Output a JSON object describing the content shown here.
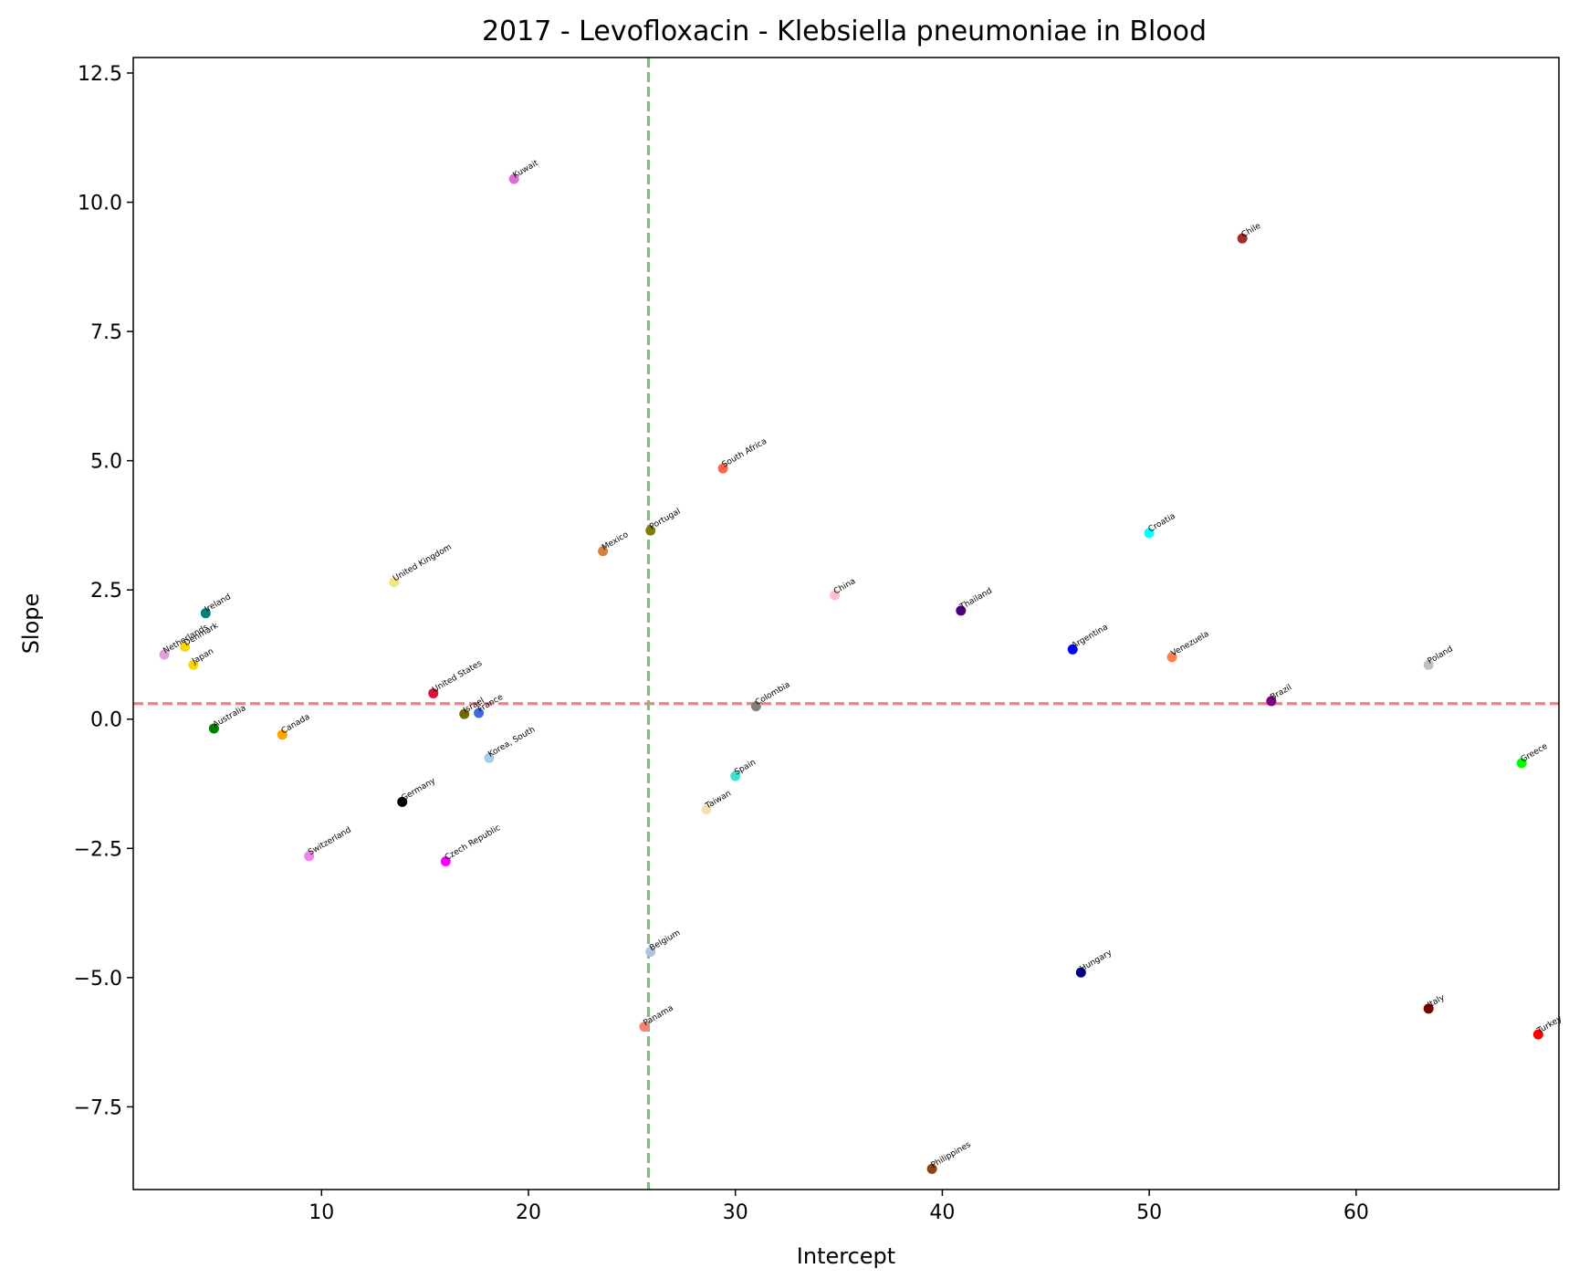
{
  "chart_data": {
    "type": "scatter",
    "title": "2017 - Levofloxacin - Klebsiella pneumoniae in Blood",
    "xlabel": "Intercept",
    "ylabel": "Slope",
    "xlim": [
      0.9,
      69.8
    ],
    "ylim": [
      -9.1,
      12.8
    ],
    "xticks": [
      10,
      20,
      30,
      40,
      50,
      60
    ],
    "yticks": [
      12.5,
      10.0,
      7.5,
      5.0,
      2.5,
      0.0,
      -2.5,
      -5.0,
      -7.5
    ],
    "xtick_labels": [
      "10",
      "20",
      "30",
      "40",
      "50",
      "60"
    ],
    "ytick_labels": [
      "12.5",
      "10.0",
      "7.5",
      "5.0",
      "2.5",
      "0.0",
      "−2.5",
      "−5.0",
      "−7.5"
    ],
    "grid": false,
    "legend": "none",
    "reference_lines": [
      {
        "orientation": "horizontal",
        "value": 0.3,
        "color": "#f08080",
        "style": "dashed"
      },
      {
        "orientation": "vertical",
        "value": 25.8,
        "color": "#7cbf7c",
        "style": "dashed"
      }
    ],
    "points": [
      {
        "label": "Kuwait",
        "x": 19.3,
        "y": 10.45,
        "color": "#da70d6"
      },
      {
        "label": "Chile",
        "x": 54.5,
        "y": 9.3,
        "color": "#a52a2a"
      },
      {
        "label": "South Africa",
        "x": 29.4,
        "y": 4.85,
        "color": "#ff6347"
      },
      {
        "label": "Croatia",
        "x": 50.0,
        "y": 3.6,
        "color": "#00ffff"
      },
      {
        "label": "Portugal",
        "x": 25.9,
        "y": 3.65,
        "color": "#808000"
      },
      {
        "label": "Mexico",
        "x": 23.6,
        "y": 3.25,
        "color": "#cd853f"
      },
      {
        "label": "United Kingdom",
        "x": 13.5,
        "y": 2.65,
        "color": "#f0e68c"
      },
      {
        "label": "China",
        "x": 34.8,
        "y": 2.4,
        "color": "#ffc0cb"
      },
      {
        "label": "Thailand",
        "x": 40.9,
        "y": 2.1,
        "color": "#4b0082"
      },
      {
        "label": "Ireland",
        "x": 4.4,
        "y": 2.05,
        "color": "#008080"
      },
      {
        "label": "Netherlands",
        "x": 2.4,
        "y": 1.25,
        "color": "#dda0dd"
      },
      {
        "label": "Denmark",
        "x": 3.4,
        "y": 1.4,
        "color": "#ffd700"
      },
      {
        "label": "Japan",
        "x": 3.8,
        "y": 1.05,
        "color": "#ffd700"
      },
      {
        "label": "Argentina",
        "x": 46.3,
        "y": 1.35,
        "color": "#0000ff"
      },
      {
        "label": "Venezuela",
        "x": 51.1,
        "y": 1.2,
        "color": "#ff7f50"
      },
      {
        "label": "Poland",
        "x": 63.5,
        "y": 1.05,
        "color": "#c0c0c0"
      },
      {
        "label": "United States",
        "x": 15.4,
        "y": 0.5,
        "color": "#dc143c"
      },
      {
        "label": "Brazil",
        "x": 55.9,
        "y": 0.35,
        "color": "#800080"
      },
      {
        "label": "Colombia",
        "x": 31.0,
        "y": 0.25,
        "color": "#808080"
      },
      {
        "label": "Israel",
        "x": 16.9,
        "y": 0.1,
        "color": "#6b6b00"
      },
      {
        "label": "France",
        "x": 17.6,
        "y": 0.12,
        "color": "#4169e1"
      },
      {
        "label": "Australia",
        "x": 4.8,
        "y": -0.18,
        "color": "#008000"
      },
      {
        "label": "Canada",
        "x": 8.1,
        "y": -0.3,
        "color": "#ffa500"
      },
      {
        "label": "Korea, South",
        "x": 18.1,
        "y": -0.75,
        "color": "#a6cee3"
      },
      {
        "label": "Greece",
        "x": 68.0,
        "y": -0.85,
        "color": "#00ff00"
      },
      {
        "label": "Spain",
        "x": 30.0,
        "y": -1.1,
        "color": "#40e0d0"
      },
      {
        "label": "Germany",
        "x": 13.9,
        "y": -1.6,
        "color": "#000000"
      },
      {
        "label": "Taiwan",
        "x": 28.6,
        "y": -1.75,
        "color": "#f5deb3"
      },
      {
        "label": "Switzerland",
        "x": 9.4,
        "y": -2.65,
        "color": "#ee82ee"
      },
      {
        "label": "Czech Republic",
        "x": 16.0,
        "y": -2.75,
        "color": "#ff00ff"
      },
      {
        "label": "Belgium",
        "x": 25.9,
        "y": -4.5,
        "color": "#b0c4de"
      },
      {
        "label": "Hungary",
        "x": 46.7,
        "y": -4.9,
        "color": "#000080"
      },
      {
        "label": "Italy",
        "x": 63.5,
        "y": -5.6,
        "color": "#800000"
      },
      {
        "label": "Panama",
        "x": 25.6,
        "y": -5.95,
        "color": "#fa8072"
      },
      {
        "label": "Turkey",
        "x": 68.8,
        "y": -6.1,
        "color": "#ff0000"
      },
      {
        "label": "Philippines",
        "x": 39.5,
        "y": -8.7,
        "color": "#8b4513"
      }
    ]
  }
}
